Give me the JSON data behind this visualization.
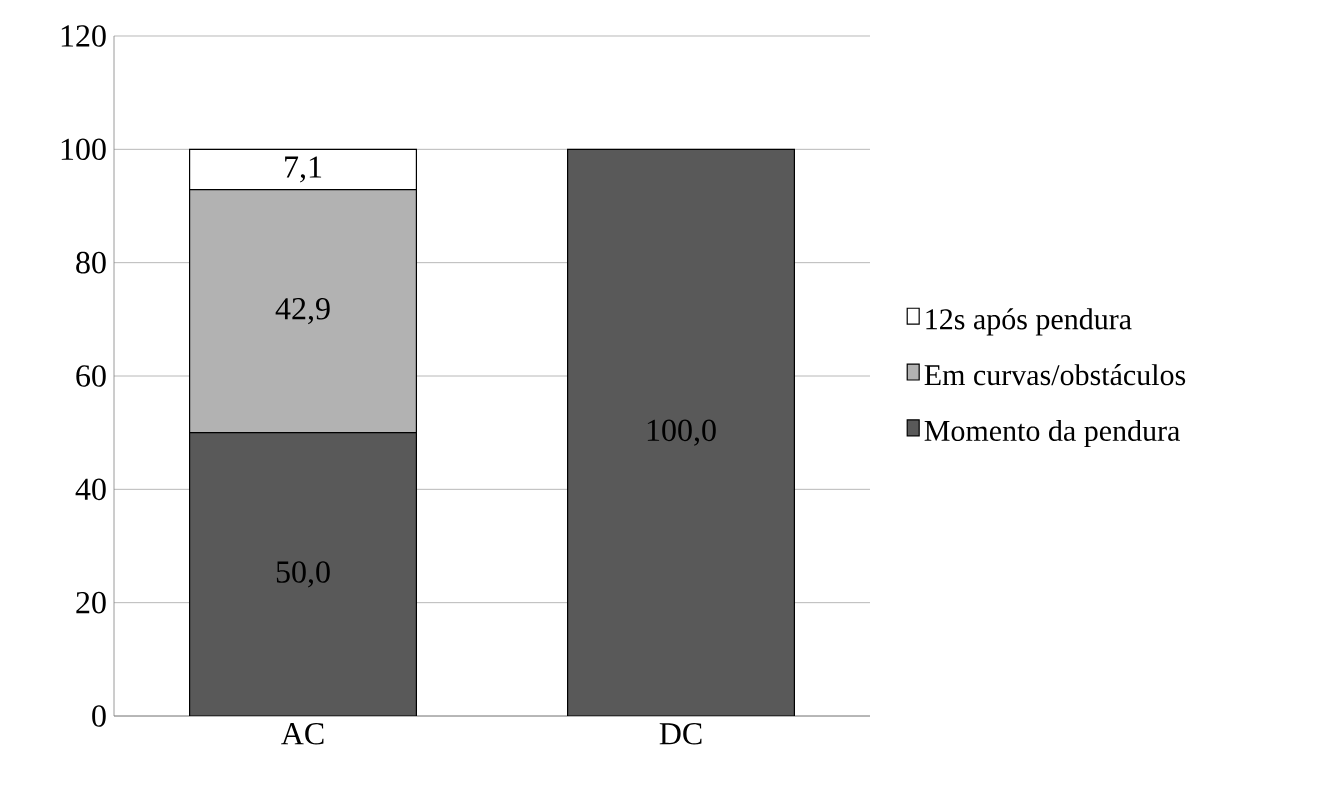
{
  "chart_data": {
    "type": "bar",
    "stacked": true,
    "categories": [
      "AC",
      "DC"
    ],
    "series": [
      {
        "name": "Momento da pendura",
        "color": "#595959",
        "values": [
          50.0,
          100.0
        ],
        "value_labels": [
          "50,0",
          "100,0"
        ]
      },
      {
        "name": "Em curvas/obstáculos",
        "color": "#b2b2b2",
        "values": [
          42.9,
          0
        ],
        "value_labels": [
          "42,9",
          null
        ]
      },
      {
        "name": "12s após pendura",
        "color": "#ffffff",
        "values": [
          7.1,
          0
        ],
        "value_labels": [
          "7,1",
          null
        ]
      }
    ],
    "ylim": [
      0,
      120
    ],
    "yticks": [
      0,
      20,
      40,
      60,
      80,
      100,
      120
    ],
    "grid": "y",
    "legend": "right"
  }
}
